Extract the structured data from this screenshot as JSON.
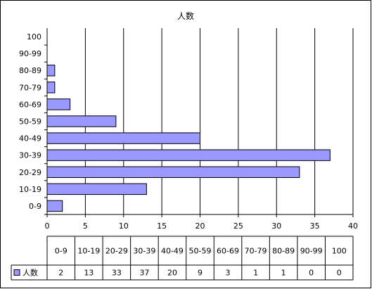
{
  "chart_data": {
    "type": "bar",
    "orientation": "horizontal",
    "title": "人数",
    "categories": [
      "0-9",
      "10-19",
      "20-29",
      "30-39",
      "40-49",
      "50-59",
      "60-69",
      "70-79",
      "80-89",
      "90-99",
      "100"
    ],
    "series": [
      {
        "name": "人数",
        "values": [
          2,
          13,
          33,
          37,
          20,
          9,
          3,
          1,
          1,
          0,
          0
        ]
      }
    ],
    "xlim": [
      0,
      40
    ],
    "x_ticks": [
      "0",
      "5",
      "10",
      "15",
      "20",
      "25",
      "30",
      "35",
      "40"
    ],
    "grid": "vertical",
    "legend": "bottom-left, in data table",
    "data_table": true,
    "colors": {
      "bar_fill": "#9999ff",
      "bar_stroke": "#000000",
      "grid": "#000000",
      "border": "#000000"
    }
  }
}
